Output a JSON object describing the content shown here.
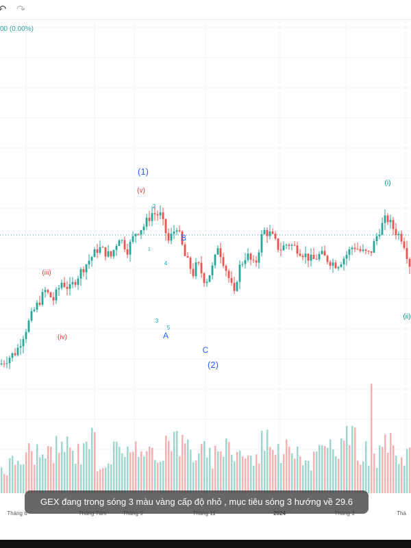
{
  "toolbar": {
    "undo_icon": "undo-icon",
    "redo_icon": "redo-icon"
  },
  "header": {
    "change_text": "00 (0.00%)"
  },
  "caption": "GEX đang trong sóng 3 màu vàng cấp độ nhỏ , mục tiêu sóng 3 hướng về 29.6",
  "colors": {
    "up": "#26a69a",
    "down": "#ef5350",
    "blue_label": "#2962ff",
    "red_label": "#e53935",
    "teal_label": "#00897b",
    "cyan_label": "#00acc1"
  },
  "chart_data": {
    "type": "candlestick",
    "x_tick_labels": [
      "Tháng 6",
      "Tháng Tám",
      "Tháng 9",
      "Tháng 11",
      "2024",
      "Tháng 3",
      "Thá"
    ],
    "wave_labels": [
      {
        "text": "(1)",
        "color": "blue"
      },
      {
        "text": "(v)",
        "color": "red"
      },
      {
        "text": "2",
        "color": "cyan"
      },
      {
        "text": "1",
        "color": "cyan"
      },
      {
        "text": "B",
        "color": "blue"
      },
      {
        "text": "4",
        "color": "cyan"
      },
      {
        "text": "3",
        "color": "cyan"
      },
      {
        "text": "5",
        "color": "cyan"
      },
      {
        "text": "A",
        "color": "blue"
      },
      {
        "text": "C",
        "color": "blue"
      },
      {
        "text": "(2)",
        "color": "blue"
      },
      {
        "text": "(iii)",
        "color": "red"
      },
      {
        "text": "(iv)",
        "color": "red"
      },
      {
        "text": "(i)",
        "color": "teal"
      },
      {
        "text": "(ii)",
        "color": "teal"
      }
    ],
    "price_path": [
      [
        0,
        20.2
      ],
      [
        4,
        20.8
      ],
      [
        8,
        22.6
      ],
      [
        11,
        23.6
      ],
      [
        13,
        23.2
      ],
      [
        15,
        24.0
      ],
      [
        17,
        23.7
      ],
      [
        20,
        24.6
      ],
      [
        24,
        25.6
      ],
      [
        27,
        25.2
      ],
      [
        29,
        26.1
      ],
      [
        31,
        25.5
      ],
      [
        33,
        26.3
      ],
      [
        35,
        26.6
      ],
      [
        37,
        27.2
      ],
      [
        39,
        27.1
      ],
      [
        41,
        25.9
      ],
      [
        43,
        26.6
      ],
      [
        45,
        25.2
      ],
      [
        47,
        24.4
      ],
      [
        48,
        24.9
      ],
      [
        50,
        24.0
      ],
      [
        52,
        24.8
      ],
      [
        53,
        25.7
      ],
      [
        55,
        24.6
      ],
      [
        57,
        23.4
      ],
      [
        58,
        24.6
      ],
      [
        60,
        25.3
      ],
      [
        62,
        24.7
      ],
      [
        64,
        26.4
      ],
      [
        66,
        26.2
      ],
      [
        68,
        25.5
      ],
      [
        70,
        25.8
      ],
      [
        72,
        25.6
      ],
      [
        74,
        25.3
      ],
      [
        76,
        25.0
      ],
      [
        78,
        25.3
      ],
      [
        80,
        25.0
      ],
      [
        82,
        24.8
      ],
      [
        84,
        25.2
      ],
      [
        86,
        25.7
      ],
      [
        88,
        25.4
      ],
      [
        90,
        25.3
      ],
      [
        92,
        26.3
      ],
      [
        94,
        27.0
      ],
      [
        96,
        26.4
      ],
      [
        98,
        26.0
      ],
      [
        99,
        25.3
      ],
      [
        100,
        24.6
      ]
    ],
    "volume_profile": [
      2,
      3,
      4,
      3,
      5,
      4,
      6,
      3,
      4,
      5,
      3,
      4,
      6,
      5,
      4,
      3,
      5,
      4,
      3,
      6,
      4,
      5,
      3,
      4,
      5,
      6,
      4,
      3,
      5,
      4
    ]
  }
}
